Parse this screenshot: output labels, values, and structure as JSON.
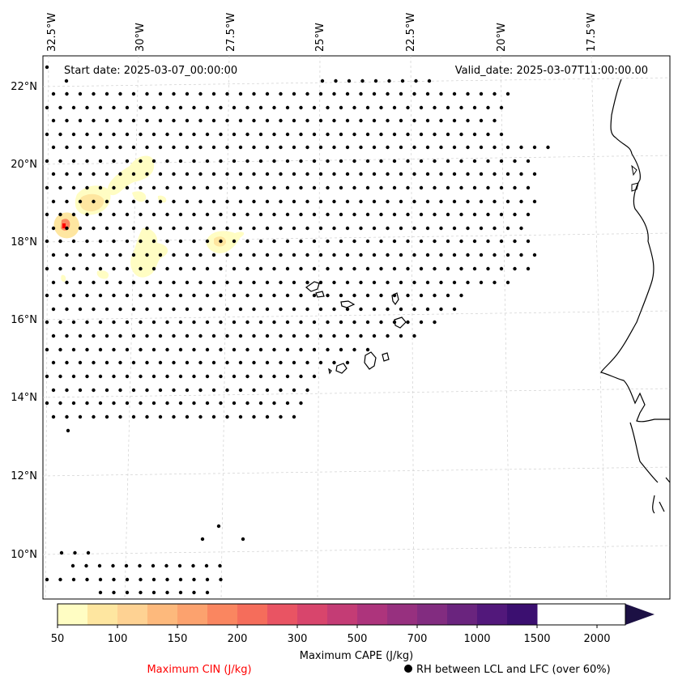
{
  "map": {
    "start_date": "Start date: 2025-03-07_00:00:00",
    "valid_date": "Valid_date: 2025-03-07T11:00:00.00",
    "lon_labels": [
      "32.5°W",
      "30°W",
      "27.5°W",
      "25°W",
      "22.5°W",
      "20°W",
      "17.5°W"
    ],
    "lat_labels": [
      "22°N",
      "20°N",
      "18°N",
      "16°N",
      "14°N",
      "12°N",
      "10°N"
    ]
  },
  "colorbar": {
    "label": "Maximum CAPE (J/kg)",
    "ticks": [
      "50",
      "100",
      "150",
      "200",
      "300",
      "500",
      "700",
      "1000",
      "1500",
      "2000"
    ],
    "colors": [
      "#fffdc3",
      "#fee6a0",
      "#fed293",
      "#fdb97c",
      "#fca26e",
      "#fa8660",
      "#f56d5b",
      "#e95463",
      "#d8456c",
      "#c43c75",
      "#ad347c",
      "#97307f",
      "#822c80",
      "#6a247e",
      "#52187b",
      "#3b0f70",
      "#1c1044"
    ]
  },
  "legend": {
    "cin": "Maximum CIN (J/kg)",
    "rh": "RH between LCL and LFC (over 60%)",
    "cin_color": "#ff0000"
  }
}
